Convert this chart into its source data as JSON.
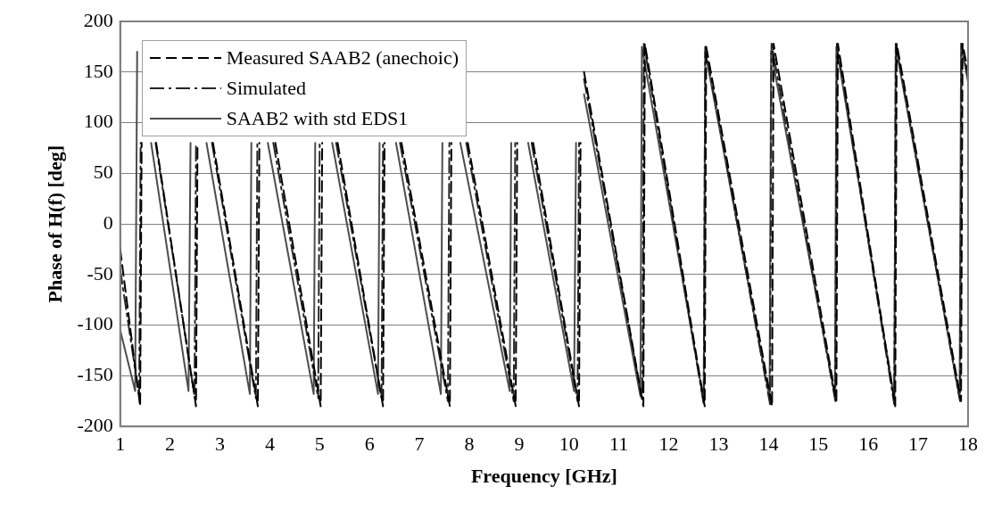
{
  "chart_data": {
    "type": "line",
    "xlabel": "Frequency [GHz]",
    "ylabel": "Phase of H(f) [deg]",
    "xlim": [
      1,
      18
    ],
    "xticks": [
      1,
      2,
      3,
      4,
      5,
      6,
      7,
      8,
      9,
      10,
      11,
      12,
      13,
      14,
      15,
      16,
      17,
      18
    ],
    "ylim": [
      -200,
      200
    ],
    "yticks": [
      -200,
      -150,
      -100,
      -50,
      0,
      50,
      100,
      150,
      200
    ],
    "grid": "y",
    "legend": "top left",
    "marker": "none",
    "series": [
      {
        "name": "Measured SAAB2 (anechoic)",
        "color": "#000000",
        "line_style": "dashed",
        "x": [
          1,
          1.4,
          1.43,
          1.44,
          1.72,
          2.52,
          2.55,
          2.56,
          2.86,
          3.76,
          3.79,
          3.8,
          4.11,
          5.02,
          5.05,
          5.06,
          5.36,
          6.27,
          6.3,
          6.31,
          6.64,
          7.61,
          7.64,
          7.65,
          7.97,
          8.93,
          8.96,
          8.97,
          9.28,
          10.2,
          10.23,
          10.24,
          10.3,
          11.49,
          11.52,
          12.72,
          12.75,
          14.07,
          14.1,
          15.36,
          15.39,
          16.54,
          16.57,
          17.86,
          17.89,
          18
        ],
        "values": [
          -25,
          -180,
          80,
          null,
          80,
          -180,
          80,
          null,
          80,
          -180,
          80,
          null,
          80,
          -180,
          80,
          null,
          80,
          -180,
          80,
          null,
          80,
          -180,
          80,
          null,
          80,
          -180,
          80,
          null,
          80,
          -180,
          80,
          null,
          150,
          -180,
          178,
          -180,
          175,
          -180,
          178,
          -175,
          178,
          -180,
          178,
          -175,
          178,
          150
        ]
      },
      {
        "name": "Simulated",
        "color": "#262626",
        "line_style": "dashdot",
        "x": [
          1,
          1.38,
          1.41,
          1.42,
          1.71,
          2.49,
          2.52,
          2.53,
          2.84,
          3.72,
          3.75,
          3.76,
          4.07,
          4.97,
          5.0,
          5.01,
          5.33,
          6.24,
          6.27,
          6.28,
          6.61,
          7.57,
          7.6,
          7.61,
          7.94,
          8.89,
          8.92,
          8.93,
          9.25,
          10.17,
          10.2,
          10.21,
          10.3,
          11.47,
          11.5,
          12.7,
          12.73,
          14.03,
          14.06,
          15.34,
          15.37,
          16.52,
          16.55,
          17.84,
          17.87,
          18
        ],
        "values": [
          -45,
          -170,
          80,
          null,
          80,
          -170,
          80,
          null,
          80,
          -172,
          80,
          null,
          80,
          -172,
          80,
          null,
          80,
          -172,
          80,
          null,
          80,
          -175,
          80,
          null,
          80,
          -175,
          80,
          null,
          80,
          -175,
          80,
          null,
          143,
          -175,
          178,
          -178,
          175,
          -178,
          178,
          -175,
          178,
          -178,
          178,
          -175,
          178,
          145
        ]
      },
      {
        "name": "SAAB2 with std EDS1",
        "color": "#4d4d4d",
        "line_style": "solid",
        "x": [
          1,
          1.3,
          1.34,
          1.35,
          1.62,
          2.37,
          2.41,
          2.42,
          2.73,
          3.6,
          3.63,
          3.64,
          3.96,
          4.88,
          4.91,
          4.92,
          5.25,
          6.17,
          6.2,
          6.21,
          6.53,
          7.43,
          7.46,
          7.47,
          7.82,
          8.81,
          8.84,
          8.85,
          9.18,
          10.1,
          10.14,
          10.15,
          10.3,
          11.43,
          11.46,
          12.7,
          12.73,
          14.02,
          14.05,
          15.33,
          15.36,
          16.52,
          16.55,
          17.83,
          17.86,
          18
        ],
        "values": [
          -105,
          -165,
          170,
          null,
          80,
          -165,
          80,
          null,
          80,
          -168,
          80,
          null,
          80,
          -168,
          80,
          null,
          80,
          -168,
          80,
          null,
          80,
          -168,
          80,
          null,
          80,
          -165,
          80,
          null,
          80,
          -165,
          80,
          null,
          128,
          -170,
          175,
          -175,
          170,
          -172,
          170,
          -170,
          175,
          -172,
          175,
          -172,
          178,
          140
        ]
      }
    ]
  }
}
